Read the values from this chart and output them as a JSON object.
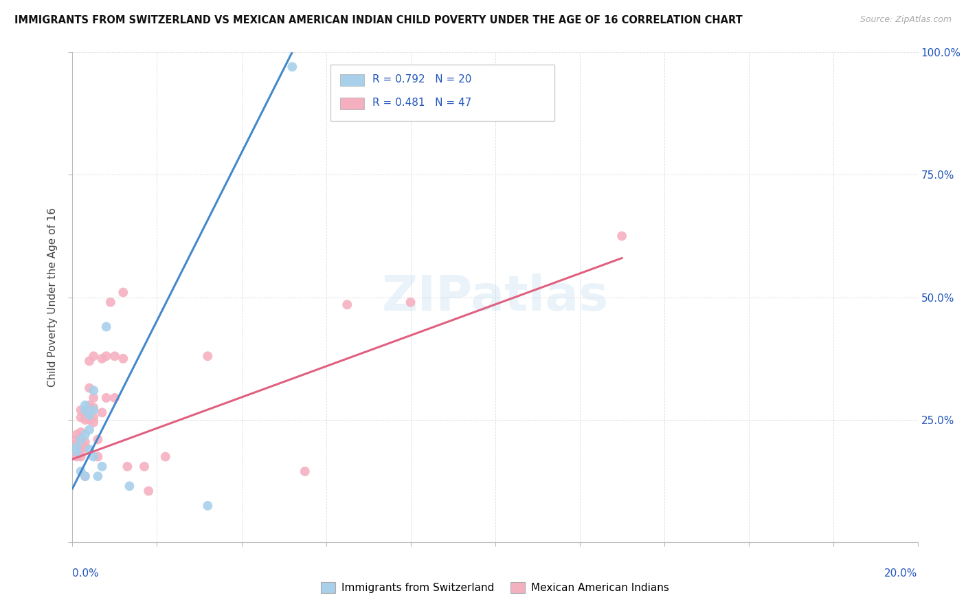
{
  "title": "IMMIGRANTS FROM SWITZERLAND VS MEXICAN AMERICAN INDIAN CHILD POVERTY UNDER THE AGE OF 16 CORRELATION CHART",
  "source": "Source: ZipAtlas.com",
  "ylabel": "Child Poverty Under the Age of 16",
  "legend_label1": "Immigrants from Switzerland",
  "legend_label2": "Mexican American Indians",
  "R1": "0.792",
  "N1": "20",
  "R2": "0.481",
  "N2": "47",
  "blue_color": "#a8d0ea",
  "blue_line_color": "#4488cc",
  "pink_color": "#f5b0c0",
  "pink_line_color": "#e06080",
  "legend_R_color": "#2255bb",
  "blue_scatter": [
    [
      0.001,
      0.185
    ],
    [
      0.002,
      0.145
    ],
    [
      0.003,
      0.135
    ],
    [
      0.001,
      0.195
    ],
    [
      0.002,
      0.21
    ],
    [
      0.003,
      0.22
    ],
    [
      0.003,
      0.28
    ],
    [
      0.003,
      0.27
    ],
    [
      0.004,
      0.23
    ],
    [
      0.004,
      0.26
    ],
    [
      0.004,
      0.19
    ],
    [
      0.005,
      0.27
    ],
    [
      0.005,
      0.31
    ],
    [
      0.005,
      0.175
    ],
    [
      0.006,
      0.135
    ],
    [
      0.007,
      0.155
    ],
    [
      0.008,
      0.44
    ],
    [
      0.0135,
      0.115
    ],
    [
      0.032,
      0.075
    ],
    [
      0.052,
      0.97
    ]
  ],
  "pink_scatter": [
    [
      0.001,
      0.175
    ],
    [
      0.001,
      0.18
    ],
    [
      0.001,
      0.2
    ],
    [
      0.001,
      0.21
    ],
    [
      0.001,
      0.22
    ],
    [
      0.002,
      0.175
    ],
    [
      0.002,
      0.185
    ],
    [
      0.002,
      0.195
    ],
    [
      0.002,
      0.205
    ],
    [
      0.002,
      0.225
    ],
    [
      0.002,
      0.255
    ],
    [
      0.002,
      0.27
    ],
    [
      0.003,
      0.195
    ],
    [
      0.003,
      0.205
    ],
    [
      0.003,
      0.25
    ],
    [
      0.003,
      0.265
    ],
    [
      0.003,
      0.135
    ],
    [
      0.004,
      0.25
    ],
    [
      0.004,
      0.265
    ],
    [
      0.004,
      0.28
    ],
    [
      0.004,
      0.315
    ],
    [
      0.004,
      0.37
    ],
    [
      0.005,
      0.245
    ],
    [
      0.005,
      0.255
    ],
    [
      0.005,
      0.275
    ],
    [
      0.005,
      0.295
    ],
    [
      0.005,
      0.38
    ],
    [
      0.006,
      0.21
    ],
    [
      0.006,
      0.175
    ],
    [
      0.007,
      0.265
    ],
    [
      0.007,
      0.375
    ],
    [
      0.008,
      0.295
    ],
    [
      0.008,
      0.38
    ],
    [
      0.009,
      0.49
    ],
    [
      0.01,
      0.295
    ],
    [
      0.01,
      0.38
    ],
    [
      0.012,
      0.375
    ],
    [
      0.012,
      0.51
    ],
    [
      0.013,
      0.155
    ],
    [
      0.017,
      0.155
    ],
    [
      0.018,
      0.105
    ],
    [
      0.022,
      0.175
    ],
    [
      0.032,
      0.38
    ],
    [
      0.055,
      0.145
    ],
    [
      0.065,
      0.485
    ],
    [
      0.08,
      0.49
    ],
    [
      0.13,
      0.625
    ]
  ],
  "blue_line_x": [
    0.0,
    0.052
  ],
  "blue_line_y": [
    0.11,
    1.0
  ],
  "pink_line_x": [
    0.0,
    0.13
  ],
  "pink_line_y": [
    0.17,
    0.58
  ],
  "background_color": "#ffffff",
  "grid_color": "#dddddd",
  "xmin": 0.0,
  "xmax": 0.2,
  "ymin": 0.0,
  "ymax": 1.0,
  "yticks": [
    0.0,
    0.25,
    0.5,
    0.75,
    1.0
  ],
  "ytick_right_labels": [
    "",
    "25.0%",
    "50.0%",
    "75.0%",
    "100.0%"
  ],
  "xticks": [
    0.0,
    0.02,
    0.04,
    0.06,
    0.08,
    0.1,
    0.12,
    0.14,
    0.16,
    0.18,
    0.2
  ]
}
